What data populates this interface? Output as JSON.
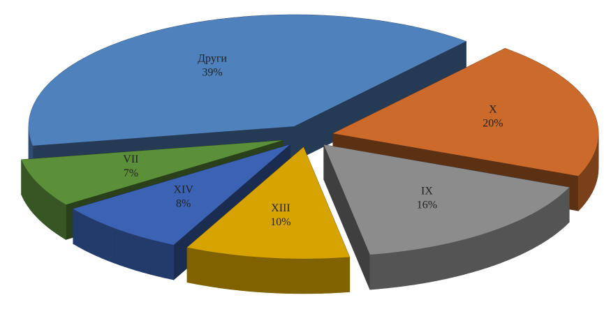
{
  "chart_data": {
    "type": "pie",
    "categories": [
      "Други",
      "X",
      "IX",
      "XIII",
      "XIV",
      "VII"
    ],
    "values": [
      39,
      20,
      16,
      10,
      8,
      7
    ],
    "value_labels": [
      "39%",
      "20%",
      "16%",
      "10%",
      "8%",
      "7%"
    ],
    "colors": [
      "#4f81bd",
      "#cc6a2b",
      "#8c8c8c",
      "#d6a300",
      "#3b62b3",
      "#5b8f3a"
    ]
  }
}
